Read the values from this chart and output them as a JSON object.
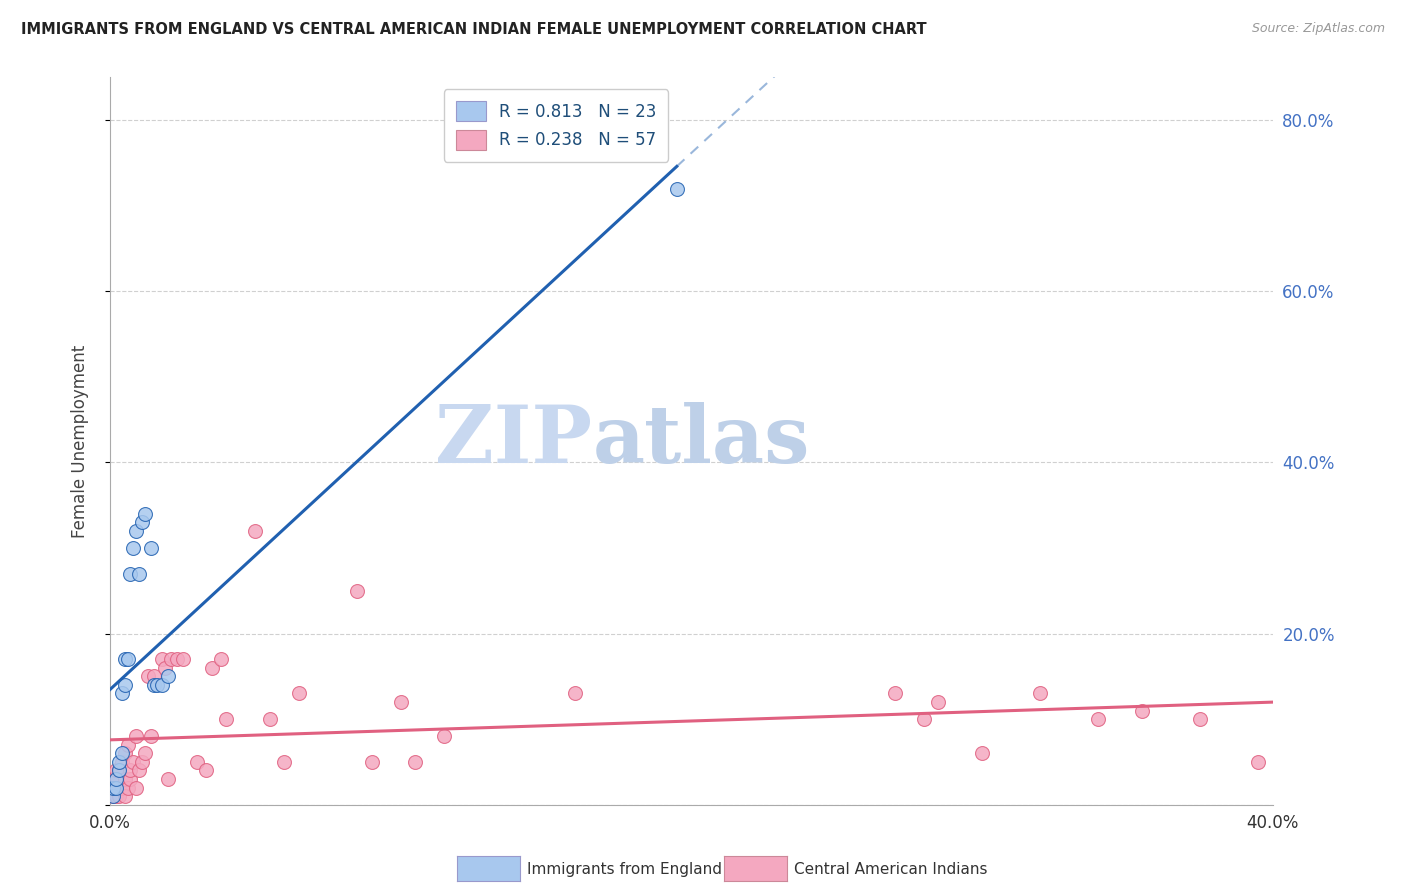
{
  "title": "IMMIGRANTS FROM ENGLAND VS CENTRAL AMERICAN INDIAN FEMALE UNEMPLOYMENT CORRELATION CHART",
  "source": "Source: ZipAtlas.com",
  "ylabel": "Female Unemployment",
  "xlim": [
    0,
    0.4
  ],
  "ylim": [
    0,
    0.85
  ],
  "xticks": [
    0.0,
    0.05,
    0.1,
    0.15,
    0.2,
    0.25,
    0.3,
    0.35,
    0.4
  ],
  "yticks": [
    0.0,
    0.2,
    0.4,
    0.6,
    0.8
  ],
  "right_yticklabels": [
    "",
    "20.0%",
    "40.0%",
    "60.0%",
    "80.0%"
  ],
  "legend_entry1_r": "R = 0.813",
  "legend_entry1_n": "N = 23",
  "legend_entry2_r": "R = 0.238",
  "legend_entry2_n": "N = 57",
  "blue_color": "#A8C8EE",
  "pink_color": "#F4A8C0",
  "blue_line_color": "#2060B0",
  "pink_line_color": "#E06080",
  "legend_text_color": "#1F4E79",
  "watermark_zip_color": "#C8D8F0",
  "watermark_atlas_color": "#BED0E8",
  "england_x": [
    0.001,
    0.001,
    0.002,
    0.002,
    0.003,
    0.003,
    0.004,
    0.004,
    0.005,
    0.005,
    0.006,
    0.007,
    0.008,
    0.009,
    0.01,
    0.011,
    0.012,
    0.014,
    0.015,
    0.016,
    0.018,
    0.02,
    0.195
  ],
  "england_y": [
    0.01,
    0.02,
    0.02,
    0.03,
    0.04,
    0.05,
    0.06,
    0.13,
    0.14,
    0.17,
    0.17,
    0.27,
    0.3,
    0.32,
    0.27,
    0.33,
    0.34,
    0.3,
    0.14,
    0.14,
    0.14,
    0.15,
    0.72
  ],
  "ca_indian_x": [
    0.001,
    0.001,
    0.001,
    0.002,
    0.002,
    0.002,
    0.003,
    0.003,
    0.003,
    0.004,
    0.004,
    0.005,
    0.005,
    0.005,
    0.006,
    0.006,
    0.007,
    0.007,
    0.008,
    0.009,
    0.009,
    0.01,
    0.011,
    0.012,
    0.013,
    0.014,
    0.015,
    0.018,
    0.019,
    0.02,
    0.021,
    0.023,
    0.025,
    0.03,
    0.033,
    0.035,
    0.038,
    0.04,
    0.05,
    0.055,
    0.06,
    0.065,
    0.085,
    0.09,
    0.1,
    0.105,
    0.115,
    0.16,
    0.27,
    0.28,
    0.285,
    0.3,
    0.32,
    0.34,
    0.355,
    0.375,
    0.395
  ],
  "ca_indian_y": [
    0.01,
    0.02,
    0.03,
    0.01,
    0.03,
    0.04,
    0.01,
    0.02,
    0.04,
    0.02,
    0.05,
    0.01,
    0.03,
    0.06,
    0.02,
    0.07,
    0.03,
    0.04,
    0.05,
    0.02,
    0.08,
    0.04,
    0.05,
    0.06,
    0.15,
    0.08,
    0.15,
    0.17,
    0.16,
    0.03,
    0.17,
    0.17,
    0.17,
    0.05,
    0.04,
    0.16,
    0.17,
    0.1,
    0.32,
    0.1,
    0.05,
    0.13,
    0.25,
    0.05,
    0.12,
    0.05,
    0.08,
    0.13,
    0.13,
    0.1,
    0.12,
    0.06,
    0.13,
    0.1,
    0.11,
    0.1,
    0.05
  ]
}
